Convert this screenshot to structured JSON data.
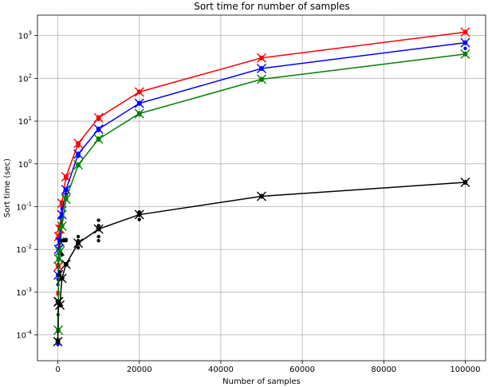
{
  "chart_data": {
    "type": "line",
    "title": "Sort time for number of samples",
    "xlabel": "Number of samples",
    "ylabel": "Sort time (sec)",
    "xlim": [
      -5000,
      105000
    ],
    "ylim": [
      2.5e-05,
      3000
    ],
    "yscale": "log",
    "grid": true,
    "x_ticks": [
      0,
      20000,
      40000,
      60000,
      80000,
      100000
    ],
    "x_tick_labels": [
      "0",
      "20000",
      "40000",
      "60000",
      "80000",
      "100000"
    ],
    "y_ticks": [
      0.0001,
      0.001,
      0.01,
      0.1,
      1,
      10,
      100,
      1000
    ],
    "y_tick_labels": [
      "10^-4",
      "10^-3",
      "10^-2",
      "10^-1",
      "10^0",
      "10^1",
      "10^2",
      "10^3"
    ],
    "series": [
      {
        "color": "#ff0000",
        "x": [
          100,
          200,
          500,
          1000,
          2000,
          5000,
          10000,
          20000,
          50000,
          100000
        ],
        "y": [
          0.004,
          0.02,
          0.03,
          0.12,
          0.5,
          3.0,
          12,
          48,
          300,
          1200
        ],
        "scatter": [
          [
            10,
            0.0009
          ],
          [
            20,
            0.001
          ],
          [
            50,
            0.002
          ],
          [
            100,
            0.004
          ],
          [
            100,
            0.0045
          ],
          [
            200,
            0.018
          ],
          [
            200,
            0.022
          ],
          [
            200,
            0.035
          ],
          [
            500,
            0.02
          ],
          [
            500,
            0.03
          ],
          [
            1000,
            0.1
          ],
          [
            1000,
            0.13
          ],
          [
            2000,
            0.45
          ],
          [
            2000,
            0.5
          ],
          [
            5000,
            2.6
          ],
          [
            5000,
            3.0
          ],
          [
            10000,
            11
          ],
          [
            10000,
            12.5
          ],
          [
            20000,
            46
          ],
          [
            20000,
            50
          ],
          [
            50000,
            290
          ],
          [
            50000,
            310
          ],
          [
            100000,
            1150
          ],
          [
            100000,
            1250
          ]
        ]
      },
      {
        "color": "#0000ff",
        "x": [
          100,
          200,
          500,
          1000,
          2000,
          5000,
          10000,
          20000,
          50000,
          100000
        ],
        "y": [
          0.0025,
          0.01,
          0.015,
          0.065,
          0.25,
          1.7,
          6.5,
          26,
          170,
          680
        ],
        "scatter": [
          [
            10,
            6e-05
          ],
          [
            20,
            0.0015
          ],
          [
            50,
            0.002
          ],
          [
            100,
            0.0025
          ],
          [
            200,
            0.01
          ],
          [
            200,
            0.017
          ],
          [
            500,
            0.015
          ],
          [
            500,
            0.055
          ],
          [
            1000,
            0.06
          ],
          [
            1000,
            0.09
          ],
          [
            2000,
            0.2
          ],
          [
            2000,
            0.25
          ],
          [
            5000,
            1.5
          ],
          [
            5000,
            1.7
          ],
          [
            10000,
            6
          ],
          [
            10000,
            6.8
          ],
          [
            20000,
            25
          ],
          [
            20000,
            27
          ],
          [
            50000,
            165
          ],
          [
            50000,
            175
          ],
          [
            100000,
            500
          ],
          [
            100000,
            680
          ]
        ]
      },
      {
        "color": "#008000",
        "x": [
          100,
          200,
          500,
          1000,
          2000,
          5000,
          10000,
          20000,
          50000,
          100000
        ],
        "y": [
          0.00013,
          0.006,
          0.009,
          0.035,
          0.15,
          0.95,
          3.8,
          15,
          95,
          370
        ],
        "scatter": [
          [
            10,
            8e-05
          ],
          [
            20,
            0.00012
          ],
          [
            50,
            0.0003
          ],
          [
            100,
            0.0006
          ],
          [
            200,
            0.006
          ],
          [
            200,
            0.008
          ],
          [
            500,
            0.009
          ],
          [
            500,
            0.03
          ],
          [
            1000,
            0.035
          ],
          [
            1000,
            0.05
          ],
          [
            2000,
            0.15
          ],
          [
            2000,
            0.17
          ],
          [
            5000,
            0.9
          ],
          [
            5000,
            1.0
          ],
          [
            10000,
            3.6
          ],
          [
            10000,
            4.0
          ],
          [
            20000,
            14
          ],
          [
            20000,
            15.5
          ],
          [
            50000,
            90
          ],
          [
            50000,
            98
          ],
          [
            100000,
            360
          ],
          [
            100000,
            380
          ]
        ]
      },
      {
        "color": "#000000",
        "x": [
          0,
          100,
          200,
          500,
          1000,
          2000,
          5000,
          10000,
          20000,
          50000,
          100000
        ],
        "y": [
          7e-05,
          0.0006,
          0.0006,
          0.0005,
          0.0021,
          0.0045,
          0.014,
          0.03,
          0.065,
          0.175,
          0.37
        ],
        "scatter": [
          [
            0,
            7e-05
          ],
          [
            50,
            0.00055
          ],
          [
            100,
            0.0006
          ],
          [
            200,
            0.0006
          ],
          [
            500,
            0.0005
          ],
          [
            500,
            0.0025
          ],
          [
            500,
            0.003
          ],
          [
            1000,
            0.0021
          ],
          [
            1000,
            0.0075
          ],
          [
            1000,
            0.016
          ],
          [
            1500,
            0.016
          ],
          [
            2000,
            0.0045
          ],
          [
            2000,
            0.016
          ],
          [
            2000,
            0.017
          ],
          [
            5000,
            0.011
          ],
          [
            5000,
            0.014
          ],
          [
            5000,
            0.016
          ],
          [
            5000,
            0.02
          ],
          [
            10000,
            0.016
          ],
          [
            10000,
            0.02
          ],
          [
            10000,
            0.03
          ],
          [
            10000,
            0.036
          ],
          [
            10000,
            0.048
          ],
          [
            20000,
            0.05
          ],
          [
            20000,
            0.065
          ],
          [
            20000,
            0.075
          ],
          [
            50000,
            0.17
          ],
          [
            50000,
            0.18
          ],
          [
            100000,
            0.37
          ],
          [
            100000,
            0.38
          ]
        ]
      }
    ]
  }
}
